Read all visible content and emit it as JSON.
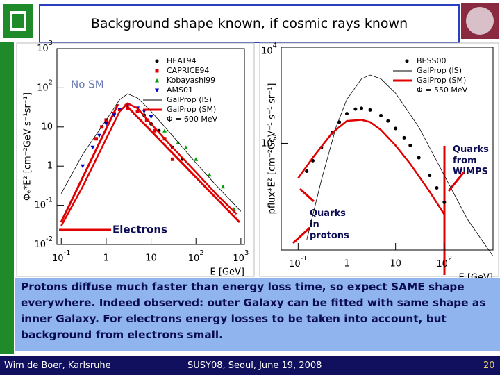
{
  "header": {
    "title": "Background shape known, if cosmic rays known"
  },
  "chart_data": [
    {
      "type": "scatter",
      "ylabel": "Φₑ*E² [cm⁻²GeV s⁻¹sr⁻¹]",
      "xlabel": "E [GeV]",
      "xlog": true,
      "ylog": true,
      "xlim": [
        0.08,
        1200
      ],
      "ylim": [
        0.01,
        1000
      ],
      "xticks": [
        {
          "value": 0.1,
          "label": "10",
          "sup": "-1"
        },
        1,
        10,
        {
          "value": 100,
          "label": "10",
          "sup": "2"
        },
        {
          "value": 1000,
          "label": "10",
          "sup": "3"
        }
      ],
      "yticks": [
        {
          "value": 0.01,
          "label": "10",
          "sup": "-2"
        },
        {
          "value": 0.1,
          "label": "10",
          "sup": "-1"
        },
        1,
        10,
        {
          "value": 100,
          "label": "10",
          "sup": "2"
        },
        {
          "value": 1000,
          "label": "10",
          "sup": "3"
        }
      ],
      "legend": "upper right",
      "legend_note": "Φ = 600 MeV",
      "series": [
        {
          "name": "HEAT94",
          "color": "#000000",
          "marker": "circle",
          "x": [
            5,
            7,
            10,
            15,
            20,
            30,
            50
          ],
          "values": [
            25,
            20,
            12,
            8,
            5,
            3,
            1.5
          ]
        },
        {
          "name": "CAPRICE94",
          "color": "#e00000",
          "marker": "square",
          "x": [
            0.6,
            0.8,
            1,
            1.5,
            2,
            3,
            5,
            8,
            12,
            20,
            30
          ],
          "values": [
            5,
            10,
            15,
            22,
            28,
            30,
            25,
            15,
            8,
            5,
            1.5
          ]
        },
        {
          "name": "Kobayashi99",
          "color": "#00a000",
          "marker": "triangle",
          "x": [
            20,
            40,
            60,
            100,
            200,
            400,
            700
          ],
          "values": [
            8,
            4,
            3,
            1.5,
            0.6,
            0.3,
            0.08
          ]
        },
        {
          "name": "AMS01",
          "color": "#0000c0",
          "marker": "triangle-down",
          "x": [
            0.3,
            0.5,
            0.7,
            1,
            1.5,
            2,
            3,
            5,
            7,
            10
          ],
          "values": [
            1,
            3,
            6,
            12,
            20,
            28,
            35,
            30,
            25,
            18
          ]
        },
        {
          "name": "GalProp (IS)",
          "color": "#000000",
          "marker": "line",
          "x": [
            0.1,
            0.3,
            1,
            2,
            3,
            5,
            10,
            30,
            100,
            300,
            1000
          ],
          "values": [
            0.2,
            2,
            15,
            50,
            70,
            55,
            25,
            6,
            1.2,
            0.3,
            0.07
          ]
        },
        {
          "name": "GalProp (SM)",
          "color": "#e00000",
          "marker": "thick-line",
          "x": [
            0.1,
            0.3,
            1,
            2,
            3,
            5,
            10,
            30,
            100,
            300,
            800
          ],
          "values": [
            0.03,
            0.3,
            5,
            25,
            40,
            30,
            12,
            3,
            0.7,
            0.18,
            0.06
          ]
        }
      ],
      "annotations": [
        "No SM",
        "Electrons"
      ]
    },
    {
      "type": "scatter",
      "ylabel": "pflux*E² [cm⁻²GeV⁻¹ s⁻¹ sr⁻¹]",
      "xlabel": "E [GeV]",
      "xlog": true,
      "ylog": true,
      "xlim": [
        0.045,
        1000
      ],
      "ylim": [
        70,
        11000
      ],
      "xticks": [
        {
          "value": 0.1,
          "label": "10",
          "sup": "-1"
        },
        1,
        10,
        {
          "value": 100,
          "label": "10",
          "sup": "2"
        }
      ],
      "yticks": [
        {
          "value": 1000,
          "label": "10",
          "sup": "3"
        },
        {
          "value": 10000,
          "label": "10",
          "sup": "4"
        }
      ],
      "legend": "upper right",
      "legend_note": "Φ = 550 MeV",
      "series": [
        {
          "name": "BESS00",
          "color": "#000000",
          "marker": "circle",
          "x": [
            0.15,
            0.2,
            0.3,
            0.5,
            0.7,
            1,
            1.5,
            2,
            3,
            5,
            7,
            10,
            15,
            20,
            30,
            50,
            70,
            100
          ],
          "values": [
            500,
            650,
            900,
            1300,
            1700,
            2100,
            2350,
            2400,
            2300,
            2000,
            1750,
            1450,
            1150,
            950,
            700,
            450,
            330,
            230
          ]
        },
        {
          "name": "GalProp (IS)",
          "color": "#000000",
          "marker": "line",
          "x": [
            0.15,
            0.3,
            0.6,
            1,
            2,
            3,
            5,
            10,
            30,
            100,
            300,
            1000
          ],
          "values": [
            90,
            400,
            1500,
            3000,
            5000,
            5500,
            5000,
            3500,
            1500,
            450,
            150,
            60
          ]
        },
        {
          "name": "GalProp (SM)",
          "color": "#e00000",
          "marker": "thick-line",
          "x": [
            0.1,
            0.2,
            0.5,
            1,
            2,
            3,
            5,
            10,
            20,
            50,
            100
          ],
          "values": [
            420,
            700,
            1300,
            1750,
            1800,
            1700,
            1400,
            950,
            600,
            300,
            170
          ]
        }
      ],
      "annotations": [
        "Quarks in protons",
        "Quarks from WIMPS"
      ]
    }
  ],
  "body": {
    "text": "Protons diffuse much faster than energy loss time, so expect SAME shape everywhere. Indeed observed: outer Galaxy can be fitted with same shape as inner Galaxy.  For electrons energy losses to be taken into account, but background from electrons small."
  },
  "footer": {
    "author": "Wim de Boer, Karlsruhe",
    "event": "SUSY08, Seoul, June 19, 2008",
    "page": "20"
  }
}
